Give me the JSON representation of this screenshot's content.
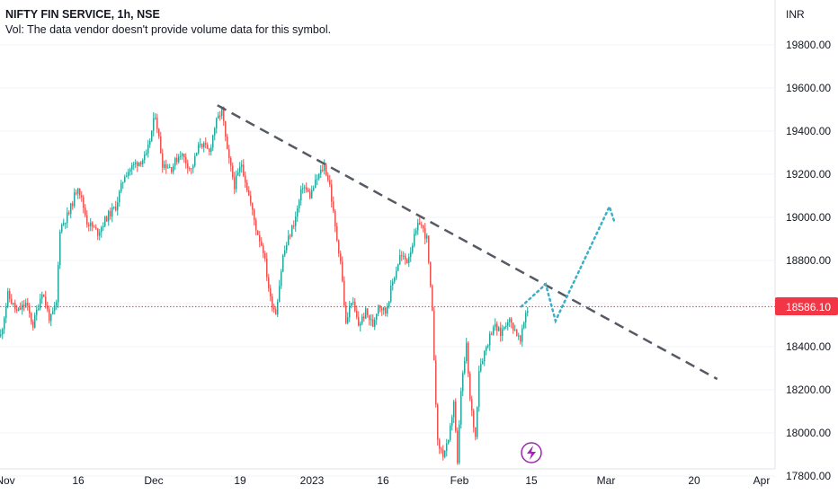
{
  "header": {
    "symbol_title": "NIFTY FIN SERVICE, 1h, NSE",
    "volume_note": "Vol: The data vendor doesn't provide volume data for this symbol."
  },
  "colors": {
    "up": "#26a69a",
    "down": "#ef5350",
    "price_line": "#f23645",
    "trendline": "#555a63",
    "projection": "#3ab0c8",
    "axis_text": "#131722",
    "grid": "#f0f3fa",
    "marker": "#9c27b0"
  },
  "icons": {
    "event_marker": "lightning-icon"
  },
  "chart_data": {
    "type": "candlestick",
    "currency_label": "INR",
    "y_range": [
      17850,
      20000
    ],
    "y_ticks": [
      "17800.00",
      "18000.00",
      "18200.00",
      "18400.00",
      "18600.00",
      "18800.00",
      "19000.00",
      "19200.00",
      "19400.00",
      "19600.00",
      "19800.00"
    ],
    "x_ticks": [
      "Nov",
      "16",
      "Dec",
      "19",
      "2023",
      "16",
      "Feb",
      "15",
      "Mar",
      "20",
      "Apr"
    ],
    "last_price": "18586.10",
    "price_path": [
      [
        0,
        18450
      ],
      [
        8,
        18640
      ],
      [
        18,
        18560
      ],
      [
        28,
        18600
      ],
      [
        36,
        18500
      ],
      [
        46,
        18660
      ],
      [
        55,
        18520
      ],
      [
        62,
        18600
      ],
      [
        66,
        18950
      ],
      [
        76,
        19020
      ],
      [
        86,
        19150
      ],
      [
        96,
        18980
      ],
      [
        108,
        18930
      ],
      [
        118,
        19000
      ],
      [
        128,
        19050
      ],
      [
        138,
        19200
      ],
      [
        150,
        19250
      ],
      [
        162,
        19280
      ],
      [
        172,
        19480
      ],
      [
        180,
        19250
      ],
      [
        190,
        19230
      ],
      [
        200,
        19300
      ],
      [
        212,
        19220
      ],
      [
        222,
        19350
      ],
      [
        232,
        19300
      ],
      [
        238,
        19420
      ],
      [
        246,
        19500
      ],
      [
        252,
        19300
      ],
      [
        260,
        19150
      ],
      [
        268,
        19250
      ],
      [
        276,
        19100
      ],
      [
        284,
        18950
      ],
      [
        292,
        18850
      ],
      [
        300,
        18620
      ],
      [
        306,
        18560
      ],
      [
        314,
        18820
      ],
      [
        320,
        18900
      ],
      [
        328,
        19000
      ],
      [
        336,
        19150
      ],
      [
        344,
        19100
      ],
      [
        352,
        19180
      ],
      [
        360,
        19240
      ],
      [
        366,
        19150
      ],
      [
        372,
        18950
      ],
      [
        378,
        18800
      ],
      [
        384,
        18500
      ],
      [
        390,
        18620
      ],
      [
        398,
        18500
      ],
      [
        406,
        18560
      ],
      [
        414,
        18500
      ],
      [
        420,
        18600
      ],
      [
        428,
        18560
      ],
      [
        436,
        18700
      ],
      [
        444,
        18820
      ],
      [
        452,
        18800
      ],
      [
        458,
        18880
      ],
      [
        466,
        18980
      ],
      [
        474,
        18900
      ],
      [
        480,
        18550
      ],
      [
        486,
        17950
      ],
      [
        492,
        17900
      ],
      [
        498,
        17950
      ],
      [
        504,
        18150
      ],
      [
        508,
        17850
      ],
      [
        512,
        18200
      ],
      [
        518,
        18400
      ],
      [
        522,
        18150
      ],
      [
        528,
        17980
      ],
      [
        532,
        18300
      ],
      [
        540,
        18400
      ],
      [
        548,
        18500
      ],
      [
        556,
        18460
      ],
      [
        564,
        18530
      ],
      [
        572,
        18480
      ],
      [
        578,
        18420
      ],
      [
        584,
        18560
      ],
      [
        588,
        18590
      ]
    ],
    "trendline": {
      "start": [
        "Dec 15",
        19520
      ],
      "end": [
        "Mar 27",
        18250
      ]
    },
    "projection_path": [
      [
        "Feb 15",
        18586
      ],
      [
        "Feb 20",
        18690
      ],
      [
        "Feb 22",
        18520
      ],
      [
        "Mar 05",
        19050
      ],
      [
        "Mar 06",
        18980
      ]
    ]
  }
}
